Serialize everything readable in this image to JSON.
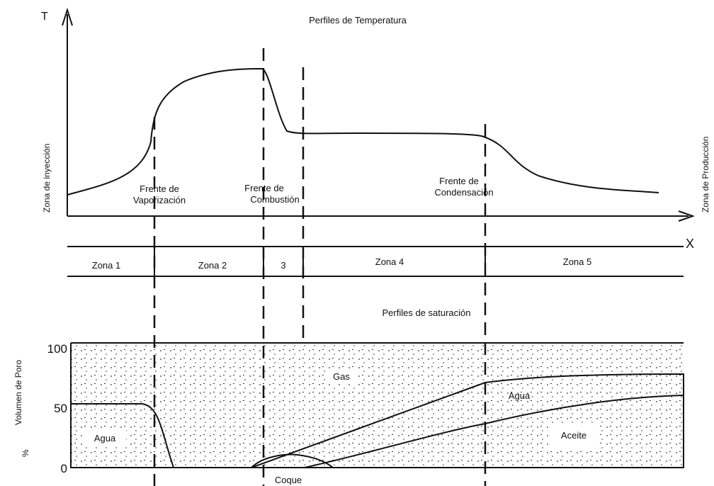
{
  "top": {
    "title": "Perfiles de Temperatura",
    "y_axis": "T",
    "x_axis": "X",
    "fronts": [
      [
        "Frente de",
        "Vaporización"
      ],
      [
        "Frente de",
        "Combustión"
      ],
      [
        "Frente de",
        "Condensación"
      ]
    ]
  },
  "side_labels": {
    "left": "Zona de inyección",
    "right": "Zona de Producción"
  },
  "zones": [
    "Zona 1",
    "Zona 2",
    "3",
    "Zona 4",
    "Zona 5"
  ],
  "bottom": {
    "title": "Perfiles de saturación",
    "y_axis": "Volumen de Poro",
    "unit": "%",
    "ticks": [
      100,
      50,
      0
    ],
    "regions": [
      "Gas",
      "Agua",
      "Agua",
      "Aceite",
      "Coque"
    ]
  }
}
